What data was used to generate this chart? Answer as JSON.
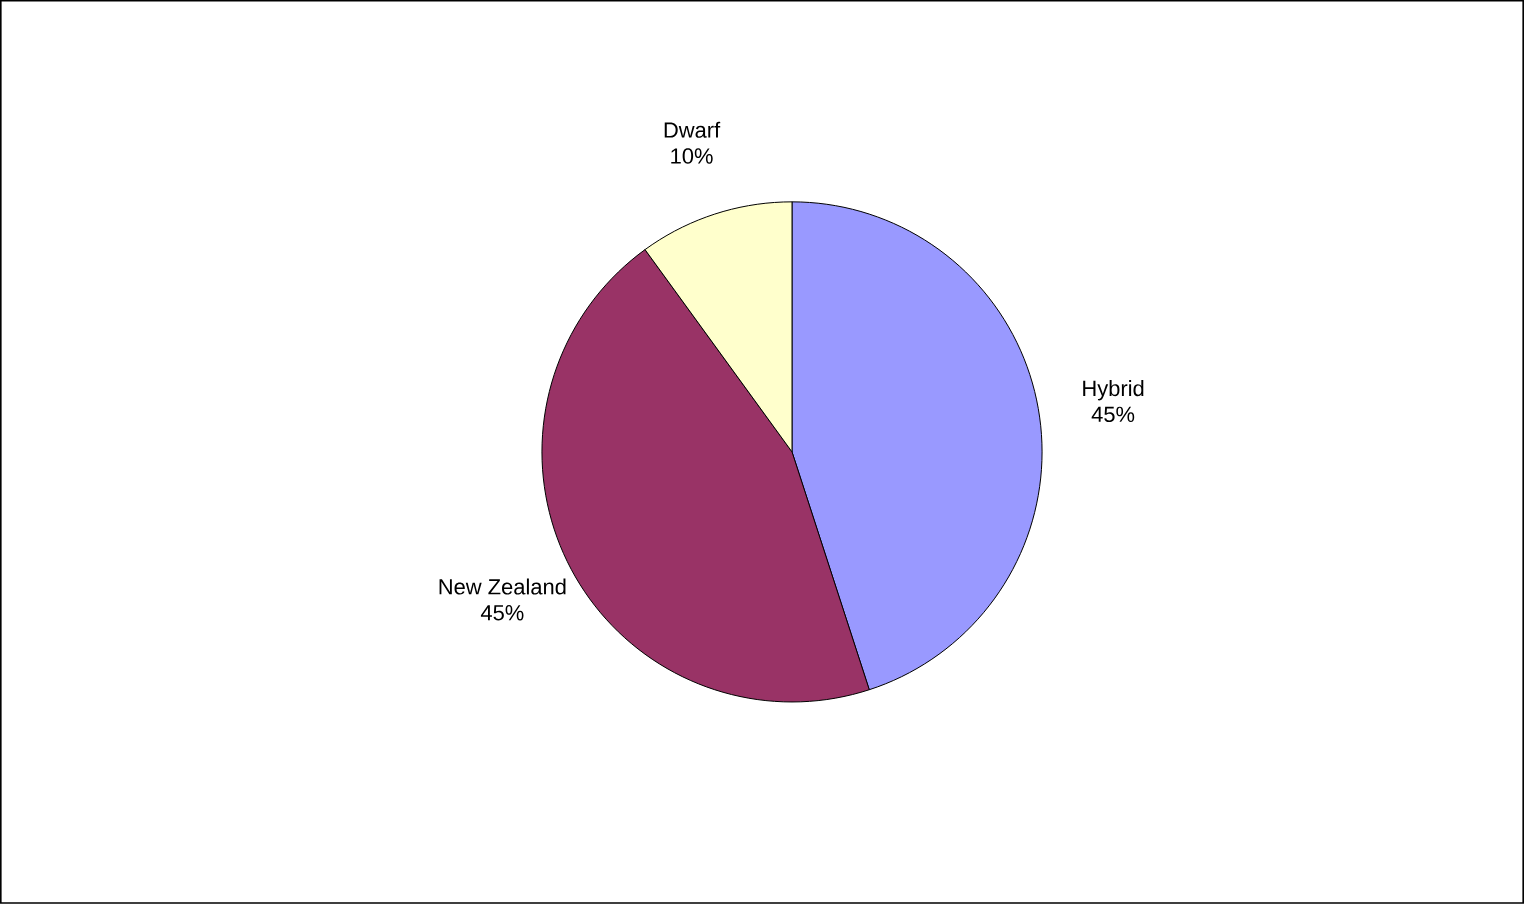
{
  "chart_data": {
    "type": "pie",
    "categories": [
      "Hybrid",
      "New Zealand",
      "Dwarf"
    ],
    "values": [
      45,
      45,
      10
    ],
    "value_labels": [
      "45%",
      "45%",
      "10%"
    ],
    "colors": [
      "#9999ff",
      "#993366",
      "#ffffcc"
    ]
  }
}
